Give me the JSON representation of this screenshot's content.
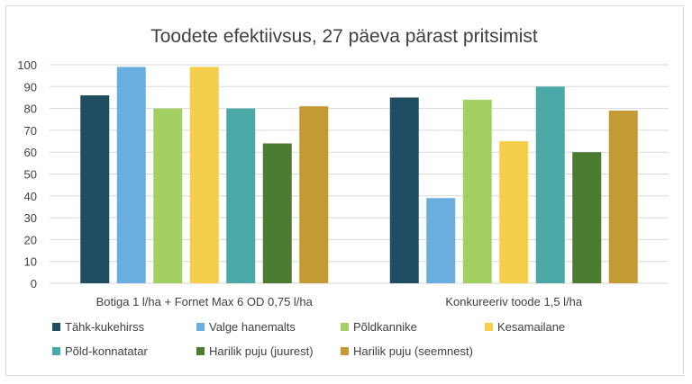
{
  "chart_data": {
    "type": "bar",
    "title": "Toodete efektiivsus, 27 päeva pärast pritsimist",
    "xlabel": "",
    "ylabel": "",
    "ylim": [
      0,
      100
    ],
    "yticks": [
      "0",
      "10",
      "20",
      "30",
      "40",
      "50",
      "60",
      "70",
      "80",
      "90",
      "100"
    ],
    "grid": true,
    "legend_position": "bottom",
    "categories": [
      "Botiga 1 l/ha + Fornet Max 6 OD 0,75 l/ha",
      "Konkureeriv toode 1,5 l/ha"
    ],
    "series": [
      {
        "name": "Tähk-kukehirss",
        "color": "#1f4e63",
        "values": [
          86,
          85
        ]
      },
      {
        "name": "Valge hanemalts",
        "color": "#6aaee0",
        "values": [
          99,
          39
        ]
      },
      {
        "name": "Põldkannike",
        "color": "#a2d063",
        "values": [
          80,
          84
        ]
      },
      {
        "name": "Kesamailane",
        "color": "#f5cf4b",
        "values": [
          99,
          65
        ]
      },
      {
        "name": "Põld-konnatatar",
        "color": "#4aa8a6",
        "values": [
          80,
          90
        ]
      },
      {
        "name": "Harilik puju (juurest)",
        "color": "#4b7d31",
        "values": [
          64,
          60
        ]
      },
      {
        "name": "Harilik puju (seemnest)",
        "color": "#c49a35",
        "values": [
          81,
          79
        ]
      }
    ]
  }
}
